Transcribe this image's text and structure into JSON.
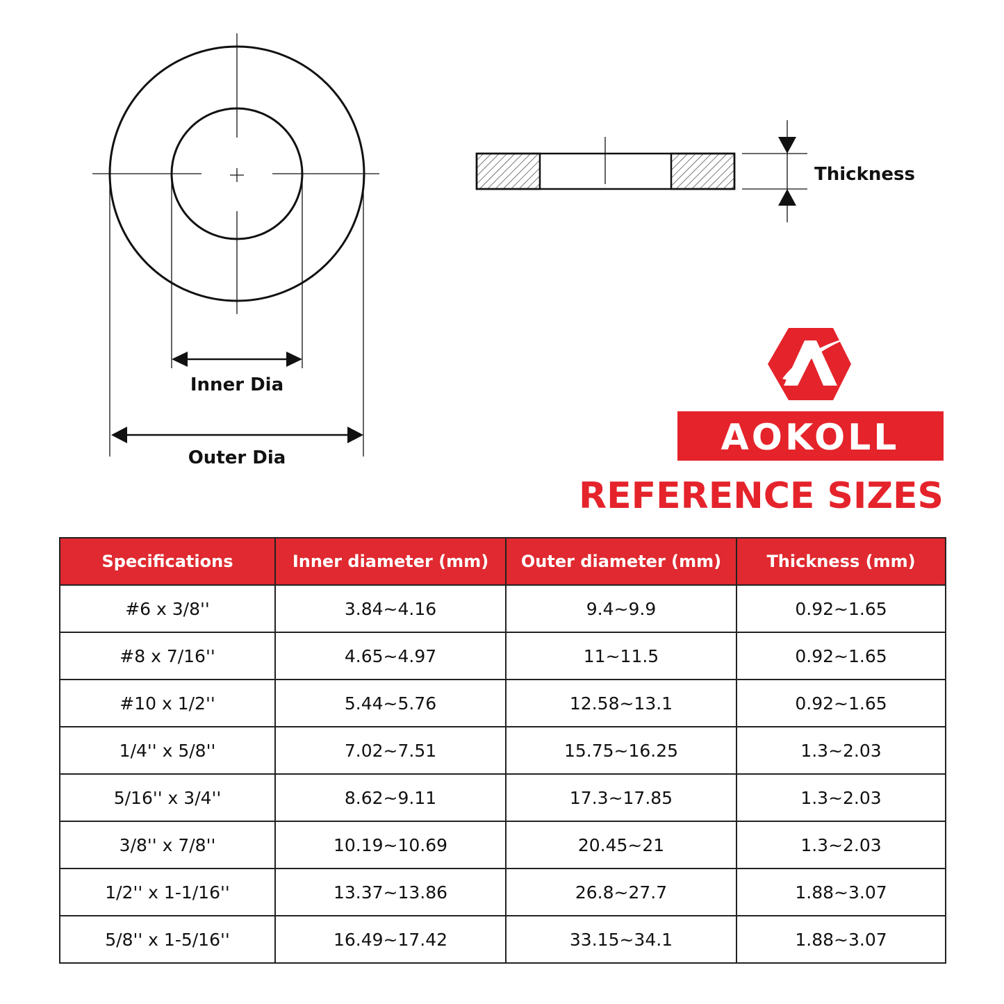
{
  "diagram": {
    "inner_dia_label": "Inner Dia",
    "outer_dia_label": "Outer Dia",
    "thickness_label": "Thickness"
  },
  "brand": {
    "name": "AOKOLL",
    "color": "#e5232b"
  },
  "title": "REFERENCE SIZES",
  "table": {
    "headers": [
      "Specifications",
      "Inner diameter (mm)",
      "Outer diameter (mm)",
      "Thickness (mm)"
    ],
    "rows": [
      [
        "#6 x 3/8''",
        "3.84~4.16",
        "9.4~9.9",
        "0.92~1.65"
      ],
      [
        "#8 x 7/16''",
        "4.65~4.97",
        "11~11.5",
        "0.92~1.65"
      ],
      [
        "#10 x 1/2''",
        "5.44~5.76",
        "12.58~13.1",
        "0.92~1.65"
      ],
      [
        "1/4'' x 5/8''",
        "7.02~7.51",
        "15.75~16.25",
        "1.3~2.03"
      ],
      [
        "5/16'' x 3/4''",
        "8.62~9.11",
        "17.3~17.85",
        "1.3~2.03"
      ],
      [
        "3/8'' x 7/8''",
        "10.19~10.69",
        "20.45~21",
        "1.3~2.03"
      ],
      [
        "1/2'' x 1-1/16''",
        "13.37~13.86",
        "26.8~27.7",
        "1.88~3.07"
      ],
      [
        "5/8'' x 1-5/16''",
        "16.49~17.42",
        "33.15~34.1",
        "1.88~3.07"
      ]
    ]
  }
}
